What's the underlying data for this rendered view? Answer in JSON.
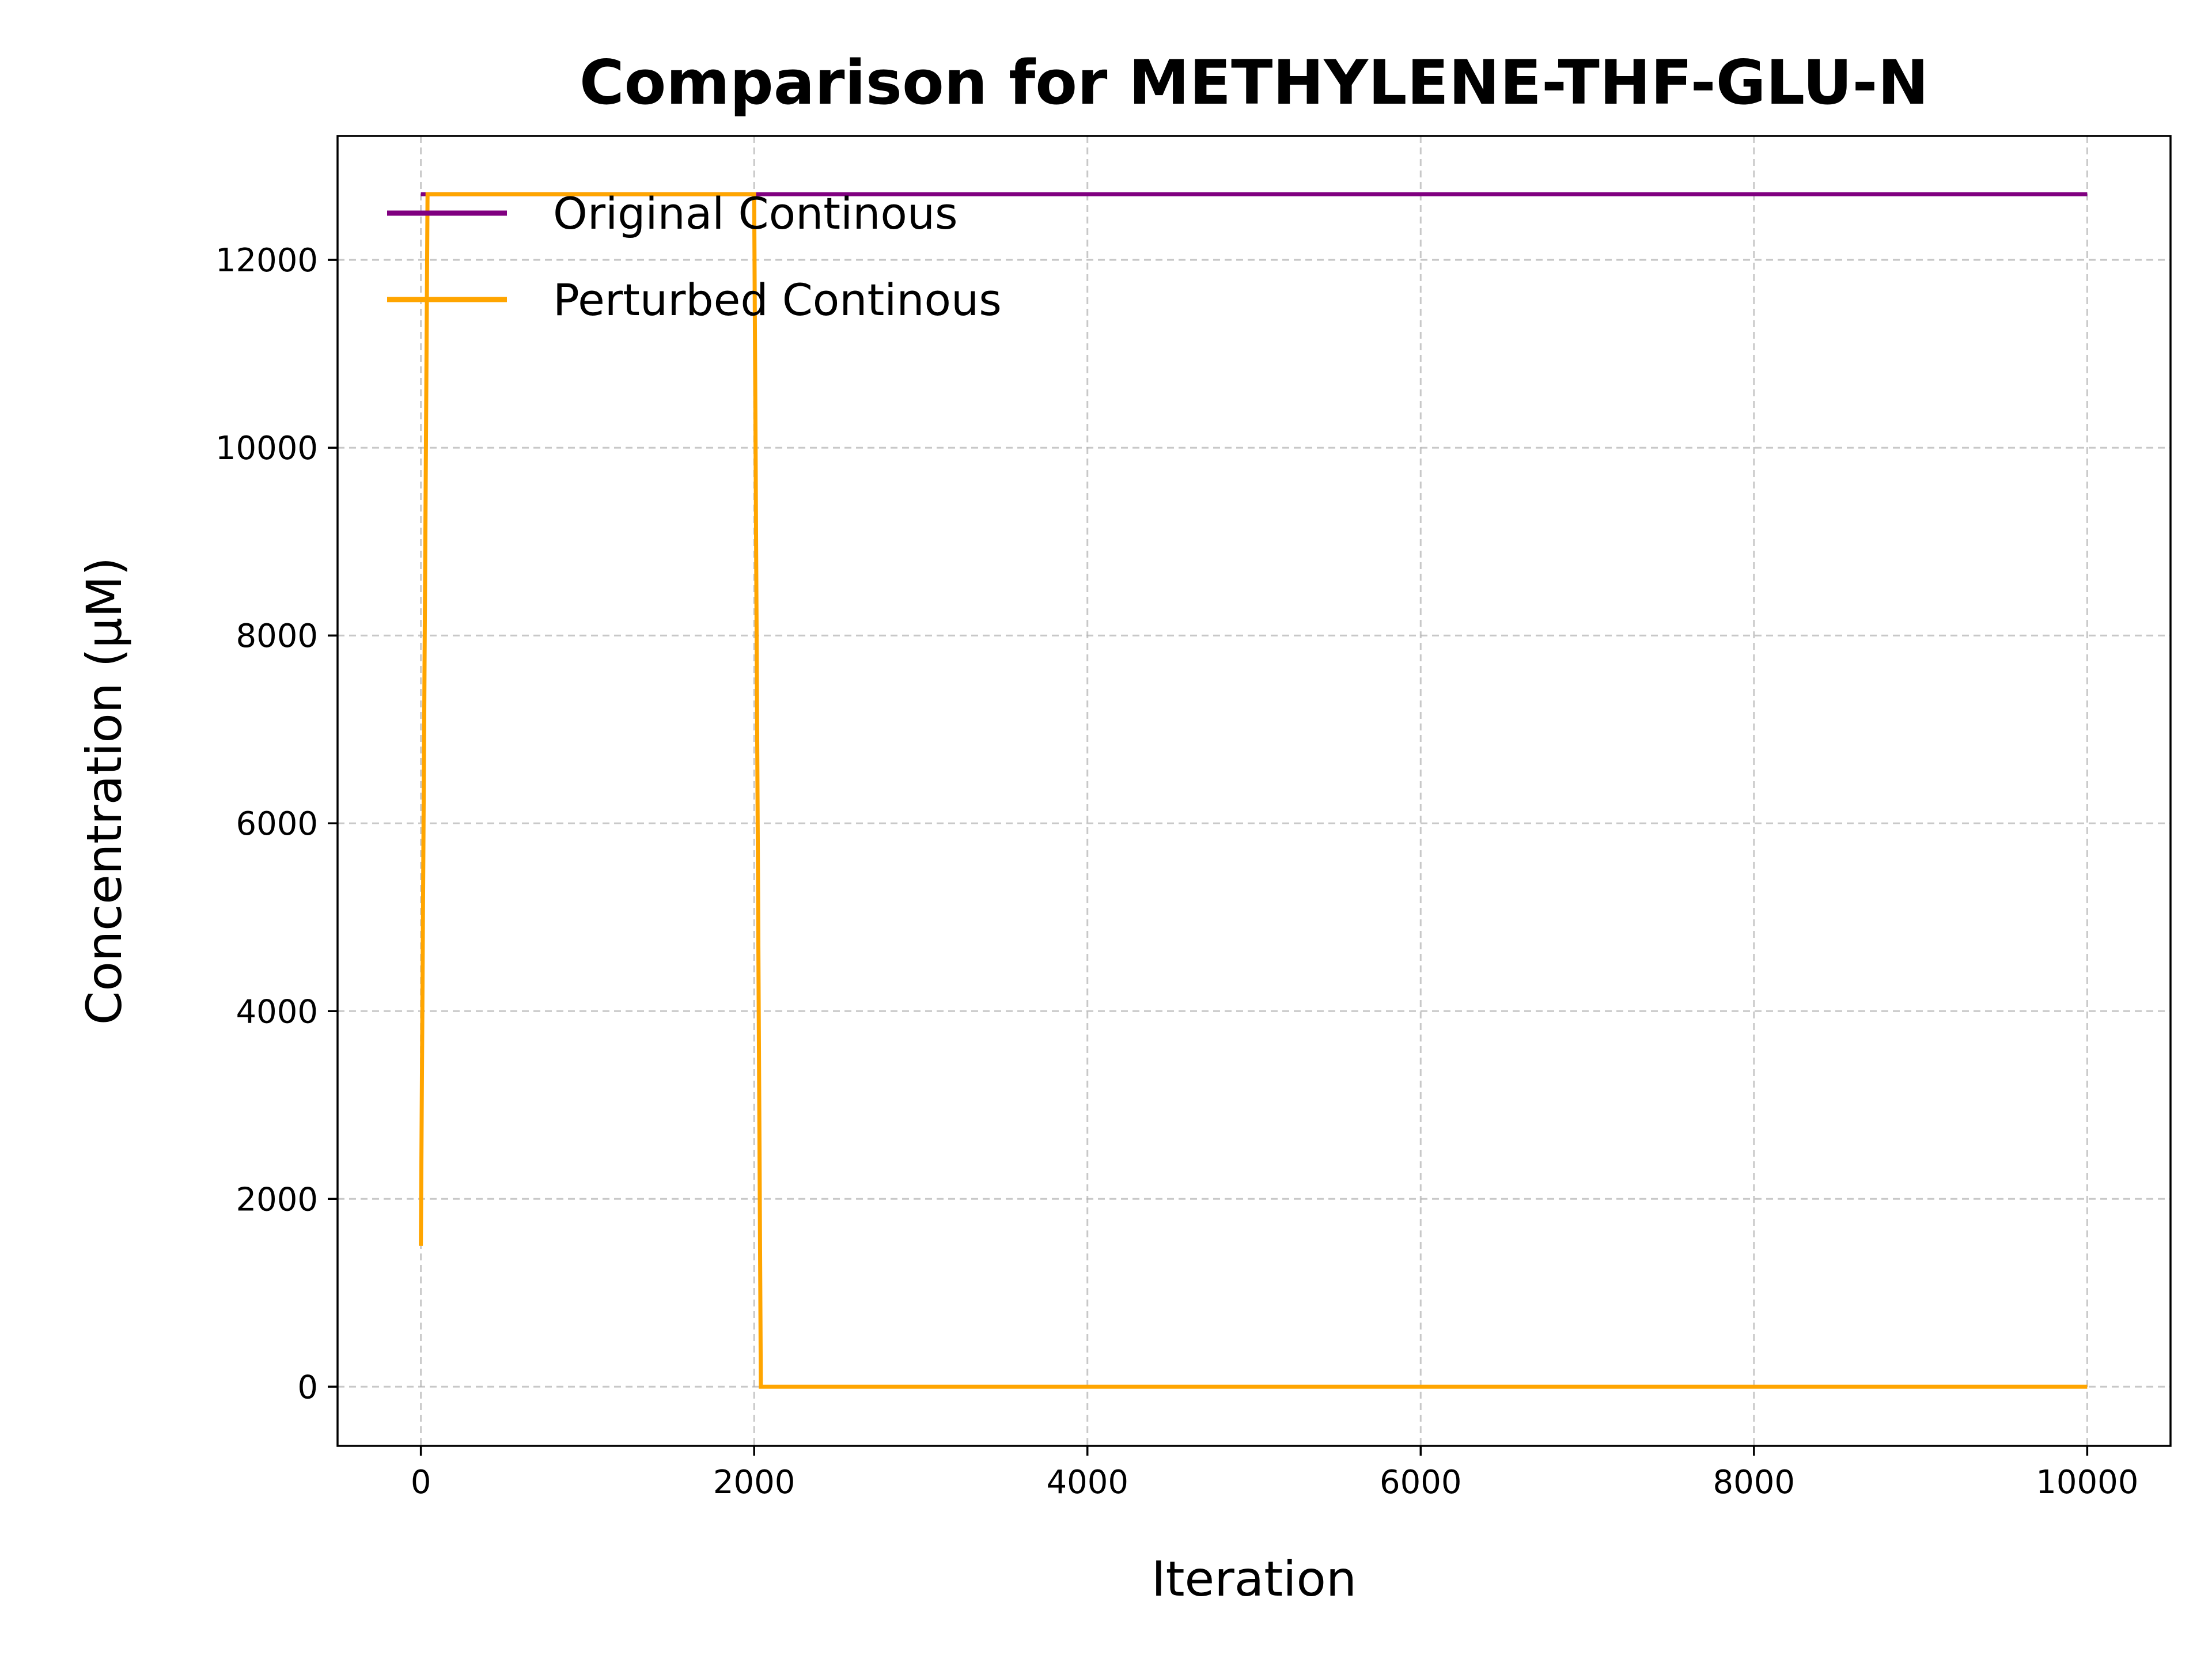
{
  "chart_data": {
    "type": "line",
    "title": "Comparison for METHYLENE-THF-GLU-N",
    "xlabel": "Iteration",
    "ylabel": "Concentration (μM)",
    "xlim": [
      -500,
      10500
    ],
    "ylim": [
      -630,
      13320
    ],
    "xticks": [
      0,
      2000,
      4000,
      6000,
      8000,
      10000
    ],
    "yticks": [
      0,
      2000,
      4000,
      6000,
      8000,
      10000,
      12000
    ],
    "grid": true,
    "legend_position": "upper-left",
    "series": [
      {
        "name": "Original Continous",
        "color": "#800080",
        "x": [
          0,
          10000
        ],
        "y": [
          12700,
          12700
        ]
      },
      {
        "name": "Perturbed Continous",
        "color": "#FFA500",
        "x": [
          0,
          40,
          2000,
          2040,
          10000
        ],
        "y": [
          1500,
          12700,
          12700,
          0,
          0
        ]
      }
    ]
  }
}
